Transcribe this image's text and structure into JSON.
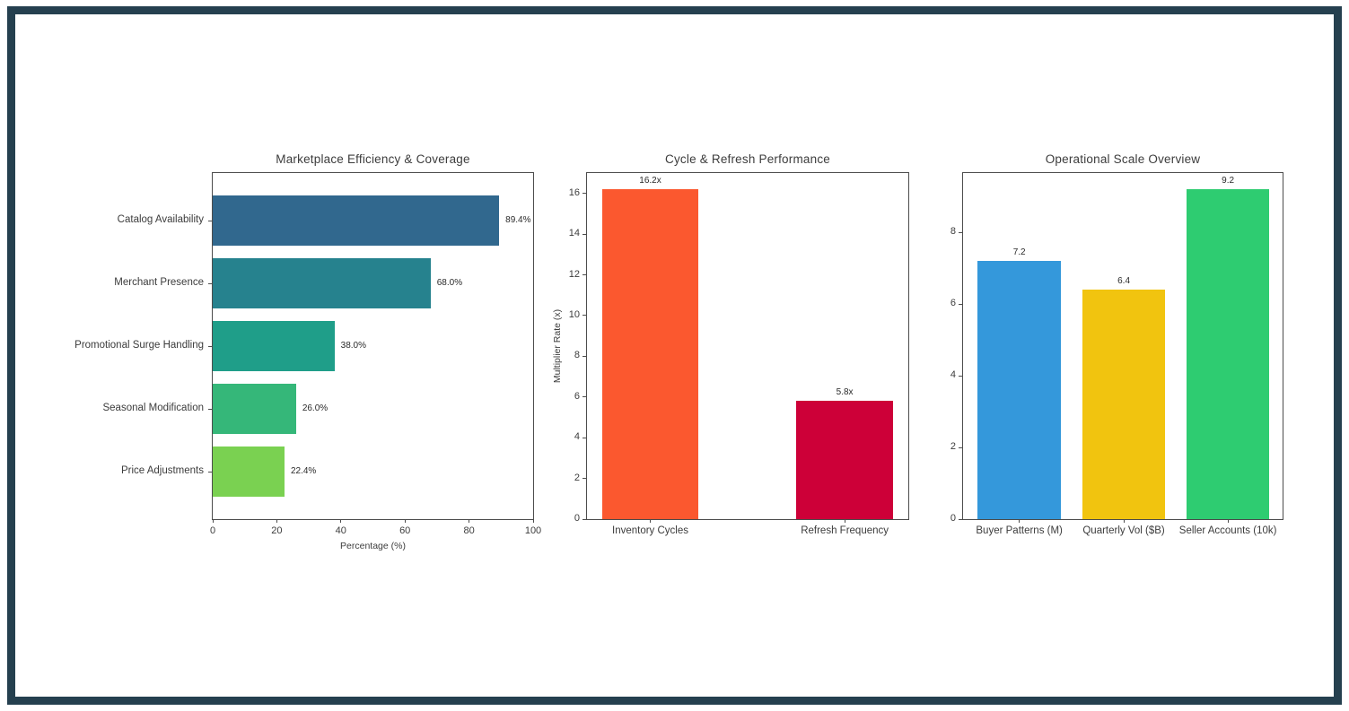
{
  "page": {
    "background_color": "#ffffff",
    "frame_border_color": "#25404f",
    "text_color": "#3c3c3c"
  },
  "chart_data": [
    {
      "type": "bar",
      "orientation": "horizontal",
      "title": "Marketplace Efficiency & Coverage",
      "categories": [
        "Catalog Availability",
        "Merchant Presence",
        "Promotional Surge Handling",
        "Seasonal Modification",
        "Price Adjustments"
      ],
      "values": [
        89.4,
        68.0,
        38.0,
        26.0,
        22.4
      ],
      "value_labels": [
        "89.4%",
        "68.0%",
        "38.0%",
        "26.0%",
        "22.4%"
      ],
      "bar_colors": [
        "#31688e",
        "#26828e",
        "#1f9e89",
        "#35b779",
        "#7ad151"
      ],
      "xlabel": "Percentage (%)",
      "ylabel": "",
      "xlim": [
        0,
        100
      ],
      "xticks": [
        0,
        20,
        40,
        60,
        80,
        100
      ],
      "grid": false,
      "legend": "none"
    },
    {
      "type": "bar",
      "orientation": "vertical",
      "title": "Cycle & Refresh Performance",
      "categories": [
        "Inventory Cycles",
        "Refresh Frequency"
      ],
      "values": [
        16.2,
        5.8
      ],
      "value_labels": [
        "16.2x",
        "5.8x"
      ],
      "bar_colors": [
        "#fb582f",
        "#cd0038"
      ],
      "xlabel": "",
      "ylabel": "Multiplier Rate (x)",
      "ylim": [
        0,
        17
      ],
      "yticks": [
        0,
        2,
        4,
        6,
        8,
        10,
        12,
        14,
        16
      ],
      "grid": false,
      "legend": "none"
    },
    {
      "type": "bar",
      "orientation": "vertical",
      "title": "Operational Scale Overview",
      "categories": [
        "Buyer Patterns (M)",
        "Quarterly Vol ($B)",
        "Seller Accounts (10k)"
      ],
      "values": [
        7.2,
        6.4,
        9.2
      ],
      "value_labels": [
        "7.2",
        "6.4",
        "9.2"
      ],
      "bar_colors": [
        "#3498db",
        "#f1c40f",
        "#2ecc71"
      ],
      "xlabel": "",
      "ylabel": "",
      "ylim": [
        0,
        9.66
      ],
      "yticks": [
        0,
        2,
        4,
        6,
        8
      ],
      "grid": false,
      "legend": "none"
    }
  ]
}
